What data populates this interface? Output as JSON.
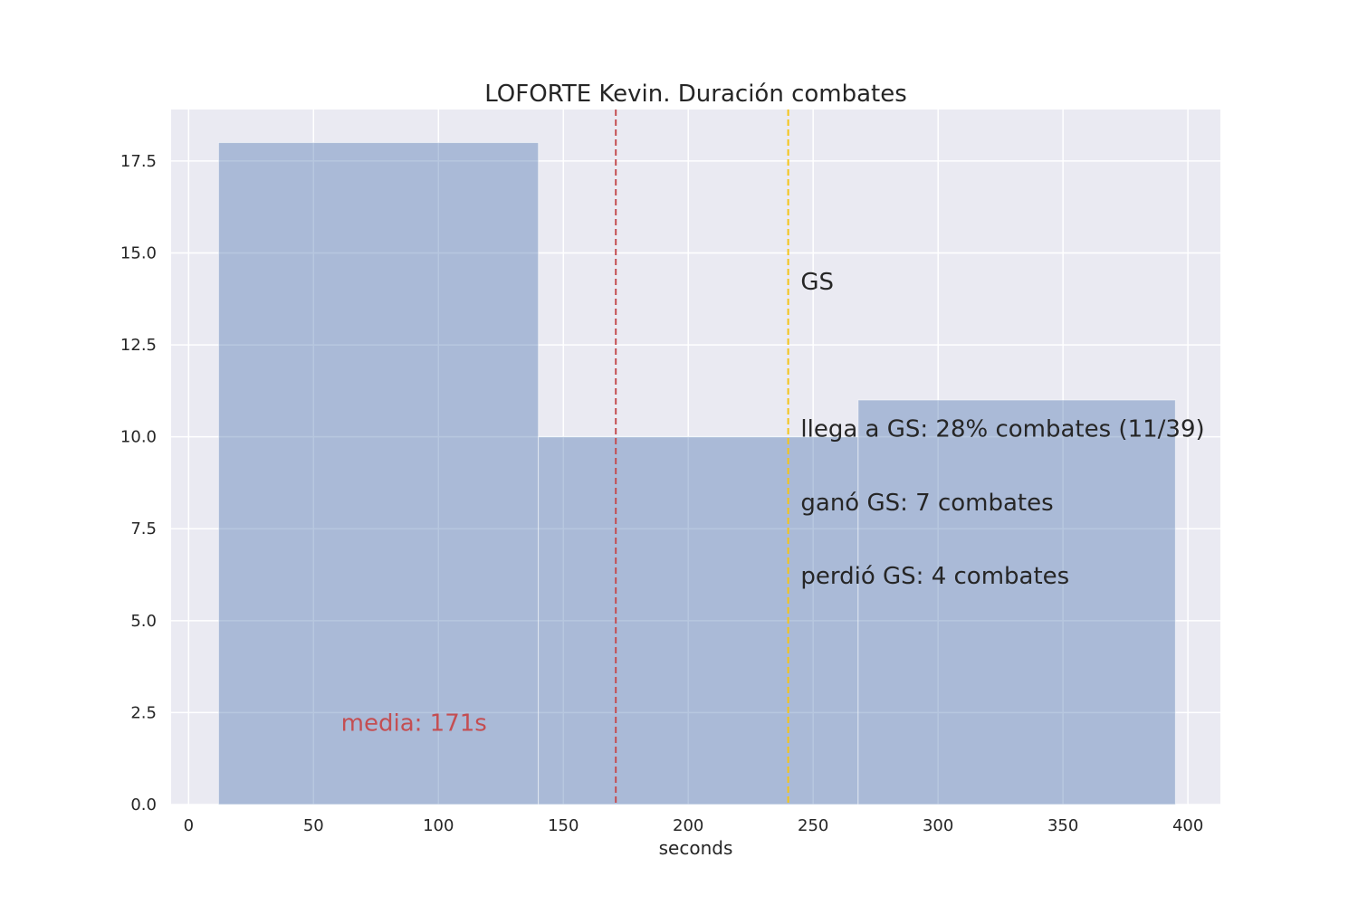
{
  "chart_data": {
    "type": "histogram",
    "title": "LOFORTE Kevin. Duración combates",
    "xlabel": "seconds",
    "ylabel": "",
    "xlim": [
      -7,
      413
    ],
    "ylim": [
      0,
      18.9
    ],
    "xticks": [
      0,
      50,
      100,
      150,
      200,
      250,
      300,
      350,
      400
    ],
    "yticks": [
      0.0,
      2.5,
      5.0,
      7.5,
      10.0,
      12.5,
      15.0,
      17.5
    ],
    "xtick_labels": [
      "0",
      "50",
      "100",
      "150",
      "200",
      "250",
      "300",
      "350",
      "400"
    ],
    "ytick_labels": [
      "0.0",
      "2.5",
      "5.0",
      "7.5",
      "10.0",
      "12.5",
      "15.0",
      "17.5"
    ],
    "bins": [
      {
        "start": 12,
        "end": 140,
        "count": 18
      },
      {
        "start": 140,
        "end": 268,
        "count": 10
      },
      {
        "start": 268,
        "end": 395,
        "count": 11
      }
    ],
    "grid": true,
    "vlines": [
      {
        "name": "mean",
        "x": 171,
        "color": "#c44e52",
        "style": "dashed"
      },
      {
        "name": "golden-score",
        "x": 240,
        "color": "#f5c518",
        "style": "dashed"
      }
    ],
    "annotations": [
      {
        "name": "annotation-mean",
        "text": "media: 171s",
        "x": 61,
        "y": 2.0,
        "color": "#c44e52"
      },
      {
        "name": "annotation-gs",
        "text": "GS",
        "x": 245,
        "y": 14.0,
        "color": "#262626"
      },
      {
        "name": "annotation-reach-gs",
        "text": "llega a GS: 28% combates (11/39)",
        "x": 245,
        "y": 10.0,
        "color": "#262626"
      },
      {
        "name": "annotation-won-gs",
        "text": "ganó GS: 7 combates",
        "x": 245,
        "y": 8.0,
        "color": "#262626"
      },
      {
        "name": "annotation-lost-gs",
        "text": "perdió GS: 4 combates",
        "x": 245,
        "y": 6.0,
        "color": "#262626"
      }
    ],
    "colors": {
      "background": "#eaeaf2",
      "grid": "#ffffff",
      "bar": "#4c72b0",
      "bar_opacity": 0.4
    }
  }
}
